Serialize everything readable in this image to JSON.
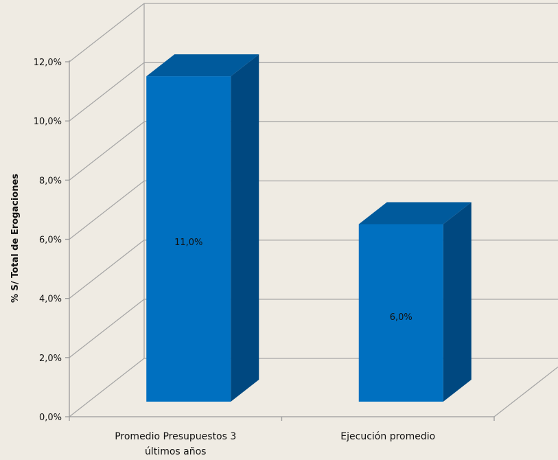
{
  "chart_data": {
    "type": "bar",
    "title": "",
    "xlabel": "",
    "ylabel": "% S/ Total de Erogaciones",
    "categories": [
      [
        "Promedio Presupuestos 3",
        "últimos años"
      ],
      [
        "Ejecución promedio"
      ]
    ],
    "values": [
      11.0,
      6.0
    ],
    "data_labels": [
      "11,0%",
      "6,0%"
    ],
    "ylim": [
      0,
      12
    ],
    "yticks": [
      {
        "value": 0,
        "label": "0,0%"
      },
      {
        "value": 2,
        "label": "2,0%"
      },
      {
        "value": 4,
        "label": "4,0%"
      },
      {
        "value": 6,
        "label": "6,0%"
      },
      {
        "value": 8,
        "label": "8,0%"
      },
      {
        "value": 10,
        "label": "10,0%"
      },
      {
        "value": 12,
        "label": "12,0%"
      }
    ],
    "grid": true,
    "three_d": true,
    "colors": {
      "bar_front": "#0070c0",
      "bar_top": "#005a9c",
      "bar_side": "#004880",
      "background": "#efebe3",
      "grid": "#a6a6a6"
    }
  }
}
